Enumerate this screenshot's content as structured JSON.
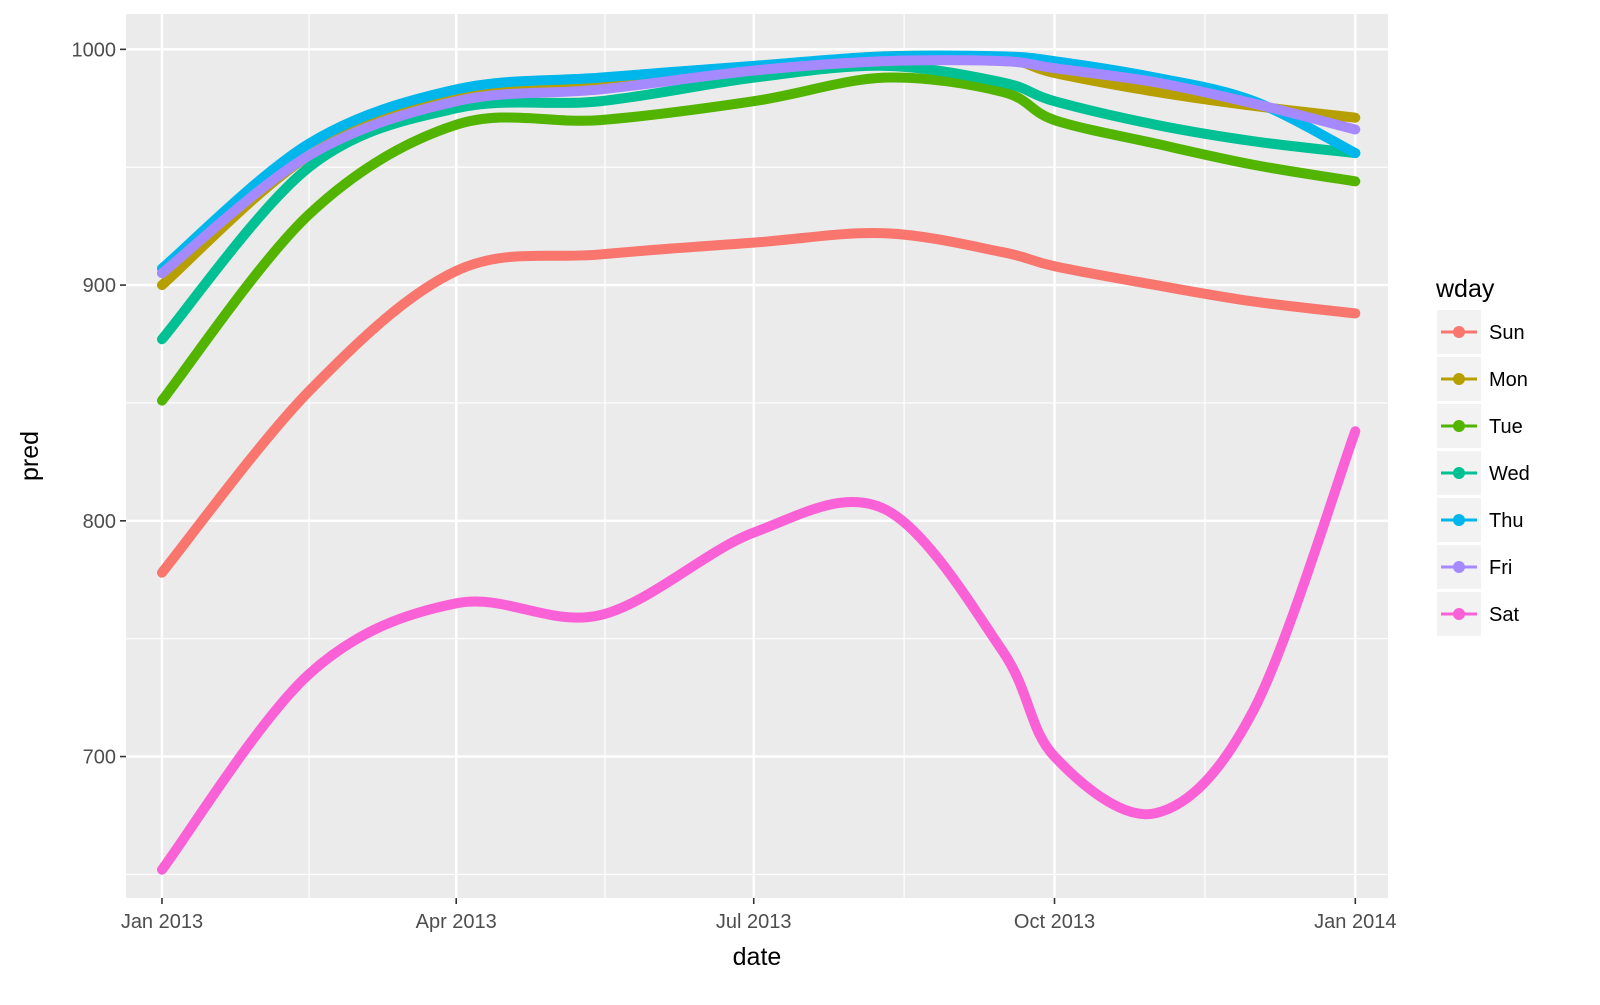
{
  "chart_data": {
    "type": "line",
    "xlabel": "date",
    "ylabel": "pred",
    "x_ticks": [
      "Jan 2013",
      "Apr 2013",
      "Jul 2013",
      "Oct 2013",
      "Jan 2014"
    ],
    "y_ticks": [
      "700",
      "800",
      "900",
      "1000"
    ],
    "xlim": [
      "2012-12-21",
      "2014-01-11"
    ],
    "ylim": [
      640,
      1015
    ],
    "grid": true,
    "legend": {
      "title": "wday",
      "placement": "right"
    },
    "x": [
      "2013-01-01",
      "2013-02-15",
      "2013-04-01",
      "2013-05-15",
      "2013-07-01",
      "2013-08-10",
      "2013-09-15",
      "2013-10-01",
      "2013-11-01",
      "2013-12-01",
      "2014-01-01"
    ],
    "series": [
      {
        "name": "Sun",
        "color": "#F8766D",
        "values": [
          778,
          855,
          906,
          913,
          918,
          922,
          914,
          908,
          900,
          893,
          888
        ]
      },
      {
        "name": "Mon",
        "color": "#B79F00",
        "values": [
          900,
          955,
          980,
          985,
          992,
          997,
          996,
          990,
          982,
          976,
          971
        ]
      },
      {
        "name": "Tue",
        "color": "#53B400",
        "values": [
          851,
          930,
          968,
          970,
          978,
          988,
          982,
          970,
          960,
          951,
          944
        ]
      },
      {
        "name": "Wed",
        "color": "#00C094",
        "values": [
          877,
          950,
          975,
          978,
          988,
          993,
          986,
          978,
          968,
          961,
          956
        ]
      },
      {
        "name": "Thu",
        "color": "#00B6EB",
        "values": [
          907,
          960,
          983,
          988,
          993,
          997,
          997,
          995,
          988,
          978,
          956
        ]
      },
      {
        "name": "Fri",
        "color": "#A58AFF",
        "values": [
          905,
          955,
          978,
          983,
          991,
          995,
          995,
          992,
          986,
          977,
          966
        ]
      },
      {
        "name": "Sat",
        "color": "#FB61D7",
        "values": [
          652,
          735,
          765,
          760,
          795,
          805,
          745,
          700,
          676,
          720,
          838
        ]
      }
    ]
  }
}
